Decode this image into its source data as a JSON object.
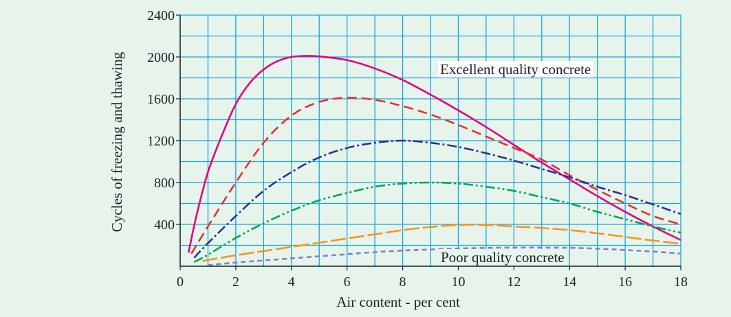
{
  "chart_data": {
    "type": "line",
    "title": "",
    "xlabel": "Air content - per cent",
    "ylabel": "Cycles of freezing and thawing",
    "xlim": [
      0,
      18
    ],
    "ylim": [
      0,
      2400
    ],
    "x_ticks": [
      "0",
      "2",
      "4",
      "6",
      "8",
      "10",
      "12",
      "14",
      "16",
      "18"
    ],
    "y_ticks": [
      "400",
      "800",
      "1200",
      "1600",
      "2000",
      "2400"
    ],
    "grid": true,
    "background_color": "#e6f4ec",
    "grid_color": "#1aa3e0",
    "annotations": [
      {
        "id": "excellent",
        "text": "Excellent quality concrete"
      },
      {
        "id": "poor",
        "text": "Poor quality concrete"
      }
    ],
    "series": [
      {
        "color": "#e6007e",
        "dash": "solid",
        "points": [
          [
            0.3,
            130
          ],
          [
            0.6,
            500
          ],
          [
            1,
            900
          ],
          [
            1.5,
            1250
          ],
          [
            2,
            1550
          ],
          [
            2.5,
            1750
          ],
          [
            3,
            1880
          ],
          [
            3.5,
            1960
          ],
          [
            4,
            2000
          ],
          [
            4.5,
            2010
          ],
          [
            5,
            2005
          ],
          [
            6,
            1970
          ],
          [
            7,
            1890
          ],
          [
            8,
            1780
          ],
          [
            9,
            1640
          ],
          [
            10,
            1490
          ],
          [
            11,
            1330
          ],
          [
            12,
            1160
          ],
          [
            13,
            990
          ],
          [
            14,
            830
          ],
          [
            15,
            670
          ],
          [
            16,
            520
          ],
          [
            17,
            380
          ],
          [
            18,
            250
          ]
        ]
      },
      {
        "color": "#e8302f",
        "dash": "14,7",
        "points": [
          [
            0.4,
            120
          ],
          [
            1,
            380
          ],
          [
            2,
            800
          ],
          [
            3,
            1180
          ],
          [
            4,
            1440
          ],
          [
            5,
            1570
          ],
          [
            6,
            1610
          ],
          [
            7,
            1590
          ],
          [
            8,
            1530
          ],
          [
            9,
            1450
          ],
          [
            10,
            1350
          ],
          [
            11,
            1240
          ],
          [
            12,
            1130
          ],
          [
            13,
            1020
          ],
          [
            14,
            870
          ],
          [
            15,
            730
          ],
          [
            16,
            600
          ],
          [
            17,
            480
          ],
          [
            18,
            400
          ]
        ]
      },
      {
        "color": "#2e3192",
        "dash": "14,4,3,4",
        "points": [
          [
            0.5,
            80
          ],
          [
            1,
            220
          ],
          [
            2,
            480
          ],
          [
            3,
            720
          ],
          [
            4,
            900
          ],
          [
            5,
            1040
          ],
          [
            6,
            1130
          ],
          [
            7,
            1180
          ],
          [
            8,
            1200
          ],
          [
            9,
            1180
          ],
          [
            10,
            1140
          ],
          [
            11,
            1080
          ],
          [
            12,
            1010
          ],
          [
            13,
            930
          ],
          [
            14,
            850
          ],
          [
            15,
            760
          ],
          [
            16,
            680
          ],
          [
            17,
            590
          ],
          [
            18,
            500
          ]
        ]
      },
      {
        "color": "#00a651",
        "dash": "14,4,3,4,3,4",
        "points": [
          [
            0.5,
            40
          ],
          [
            1,
            110
          ],
          [
            2,
            270
          ],
          [
            3,
            410
          ],
          [
            4,
            530
          ],
          [
            5,
            630
          ],
          [
            6,
            700
          ],
          [
            7,
            760
          ],
          [
            8,
            790
          ],
          [
            9,
            800
          ],
          [
            10,
            790
          ],
          [
            11,
            760
          ],
          [
            12,
            720
          ],
          [
            13,
            660
          ],
          [
            14,
            600
          ],
          [
            15,
            520
          ],
          [
            16,
            450
          ],
          [
            17,
            380
          ],
          [
            18,
            320
          ]
        ]
      },
      {
        "color": "#f7941d",
        "dash": "22,5",
        "points": [
          [
            0.8,
            50
          ],
          [
            2,
            105
          ],
          [
            3,
            145
          ],
          [
            4,
            185
          ],
          [
            5,
            225
          ],
          [
            6,
            265
          ],
          [
            7,
            305
          ],
          [
            8,
            345
          ],
          [
            9,
            375
          ],
          [
            10,
            395
          ],
          [
            11,
            395
          ],
          [
            12,
            380
          ],
          [
            13,
            365
          ],
          [
            14,
            345
          ],
          [
            15,
            315
          ],
          [
            16,
            280
          ],
          [
            17,
            245
          ],
          [
            18,
            215
          ]
        ]
      },
      {
        "color": "#8080c8",
        "dash": "7,5",
        "points": [
          [
            1,
            10
          ],
          [
            2,
            35
          ],
          [
            3,
            55
          ],
          [
            4,
            75
          ],
          [
            5,
            95
          ],
          [
            6,
            115
          ],
          [
            7,
            135
          ],
          [
            8,
            150
          ],
          [
            9,
            160
          ],
          [
            10,
            170
          ],
          [
            11,
            175
          ],
          [
            12,
            178
          ],
          [
            13,
            178
          ],
          [
            14,
            176
          ],
          [
            15,
            168
          ],
          [
            16,
            155
          ],
          [
            17,
            140
          ],
          [
            18,
            120
          ]
        ]
      }
    ]
  }
}
